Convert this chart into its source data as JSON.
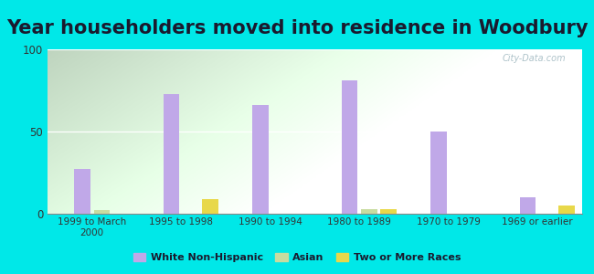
{
  "title": "Year householders moved into residence in Woodbury",
  "categories": [
    "1999 to March\n2000",
    "1995 to 1998",
    "1990 to 1994",
    "1980 to 1989",
    "1970 to 1979",
    "1969 or earlier"
  ],
  "white_non_hispanic": [
    27,
    73,
    66,
    81,
    50,
    10
  ],
  "asian": [
    2,
    0,
    0,
    3,
    0,
    0
  ],
  "two_or_more_races": [
    0,
    9,
    0,
    3,
    0,
    5
  ],
  "bar_color_white": "#c0a8e8",
  "bar_color_asian": "#c8dca0",
  "bar_color_two": "#e8d84a",
  "legend_white": "White Non-Hispanic",
  "legend_asian": "Asian",
  "legend_two": "Two or More Races",
  "ylim": [
    0,
    100
  ],
  "yticks": [
    0,
    50,
    100
  ],
  "background_color": "#00e8e8",
  "watermark": "City-Data.com",
  "title_fontsize": 15,
  "bar_width": 0.18
}
